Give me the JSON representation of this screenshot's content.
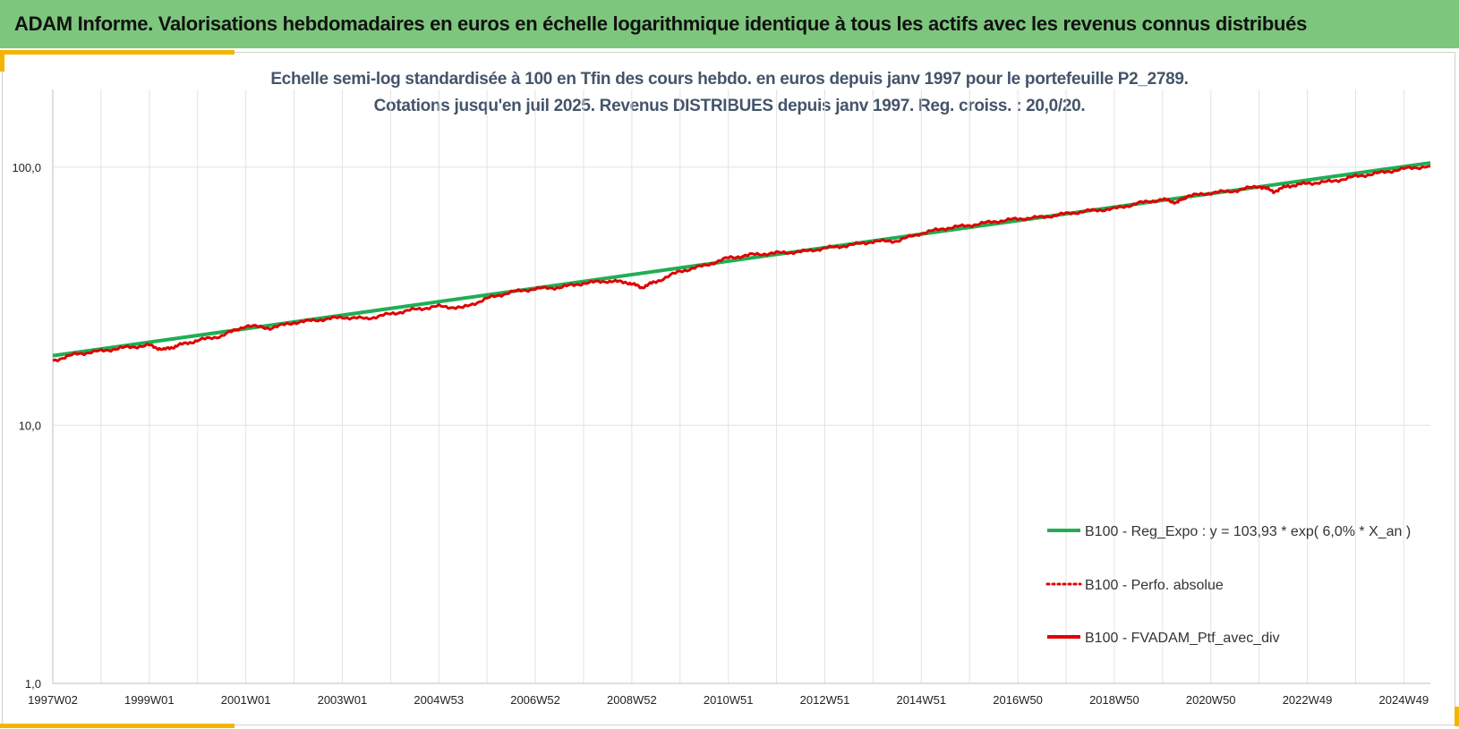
{
  "header": {
    "title": "ADAM Informe. Valorisations hebdomadaires en euros en échelle logarithmique identique à tous les actifs avec les revenus connus distribués"
  },
  "colors": {
    "header_bg": "#7dc67d",
    "accent": "#f5b400",
    "regression": "#1fae55",
    "portfolio": "#e00000",
    "subtitle_text": "#44546a"
  },
  "chart_data": {
    "type": "line",
    "title": "Echelle semi-log standardisée  à 100 en Tfin des cours hebdo.  en euros depuis janv 1997 pour  le portefeuille P2_2789.",
    "subtitle": "Cotations  jusqu'en juil 2025. Revenus DISTRIBUES depuis janv 1997. Reg. croiss. : 20,0/20.",
    "xlabel": "",
    "ylabel": "",
    "y_scale": "log",
    "ylim": [
      1,
      200
    ],
    "y_ticks": [
      {
        "value": 1,
        "label": "1,0"
      },
      {
        "value": 10,
        "label": "10,0"
      },
      {
        "value": 100,
        "label": "100,0"
      }
    ],
    "x_range": [
      1997.0,
      2025.55
    ],
    "x_ticks": [
      {
        "value": 1997.0,
        "label": "1997W02"
      },
      {
        "value": 1999.0,
        "label": "1999W01"
      },
      {
        "value": 2001.0,
        "label": "2001W01"
      },
      {
        "value": 2003.0,
        "label": "2003W01"
      },
      {
        "value": 2005.0,
        "label": "2004W53"
      },
      {
        "value": 2007.0,
        "label": "2006W52"
      },
      {
        "value": 2009.0,
        "label": "2008W52"
      },
      {
        "value": 2011.0,
        "label": "2010W51"
      },
      {
        "value": 2013.0,
        "label": "2012W51"
      },
      {
        "value": 2015.0,
        "label": "2014W51"
      },
      {
        "value": 2017.0,
        "label": "2016W50"
      },
      {
        "value": 2019.0,
        "label": "2018W50"
      },
      {
        "value": 2021.0,
        "label": "2020W50"
      },
      {
        "value": 2023.0,
        "label": "2022W49"
      },
      {
        "value": 2025.0,
        "label": "2024W49"
      }
    ],
    "grid": true,
    "legend_position": "bottom-right",
    "series": [
      {
        "name": "B100 - Reg_Expo : y = 103,93 * exp( 6,0% *  X_an )",
        "style": "solid-thick",
        "color": "#1fae55",
        "x": [
          1997.0,
          2025.55
        ],
        "y": [
          18.6,
          103.9
        ]
      },
      {
        "name": "B100 - Perfo. absolue",
        "style": "dotted",
        "color": "#e00000",
        "x": [],
        "y": []
      },
      {
        "name": "B100 - FVADAM_Ptf_avec_div",
        "style": "solid",
        "color": "#e00000",
        "x": [
          1997.0,
          1997.5,
          1998.0,
          1998.5,
          1999.0,
          1999.3,
          1999.6,
          2000.0,
          2000.5,
          2001.0,
          2001.5,
          2002.0,
          2002.5,
          2003.0,
          2003.5,
          2004.0,
          2004.5,
          2005.0,
          2005.5,
          2006.0,
          2006.5,
          2007.0,
          2007.5,
          2008.0,
          2008.5,
          2008.9,
          2009.2,
          2009.5,
          2010.0,
          2010.5,
          2011.0,
          2011.5,
          2012.0,
          2012.5,
          2013.0,
          2013.5,
          2014.0,
          2014.5,
          2015.0,
          2015.5,
          2016.0,
          2016.5,
          2017.0,
          2017.5,
          2018.0,
          2018.5,
          2019.0,
          2019.5,
          2020.0,
          2020.3,
          2020.5,
          2021.0,
          2021.5,
          2022.0,
          2022.3,
          2022.6,
          2023.0,
          2023.5,
          2024.0,
          2024.5,
          2025.0,
          2025.55
        ],
        "y": [
          17.8,
          18.9,
          19.4,
          20.0,
          20.4,
          19.6,
          20.4,
          21.3,
          22.2,
          24.3,
          23.8,
          25.0,
          25.6,
          26.2,
          25.9,
          27.0,
          28.1,
          28.9,
          28.5,
          31.0,
          32.8,
          33.8,
          34.2,
          35.5,
          36.2,
          35.8,
          34.2,
          36.0,
          39.5,
          41.5,
          44.5,
          45.8,
          46.5,
          47.0,
          48.5,
          49.8,
          51.5,
          51.8,
          55.5,
          58.0,
          59.5,
          61.5,
          63.0,
          64.0,
          66.0,
          67.8,
          69.0,
          72.5,
          75.0,
          73.0,
          77.0,
          79.5,
          81.0,
          84.5,
          80.5,
          84.5,
          86.5,
          88.0,
          92.0,
          95.0,
          98.5,
          101.0
        ]
      }
    ]
  }
}
